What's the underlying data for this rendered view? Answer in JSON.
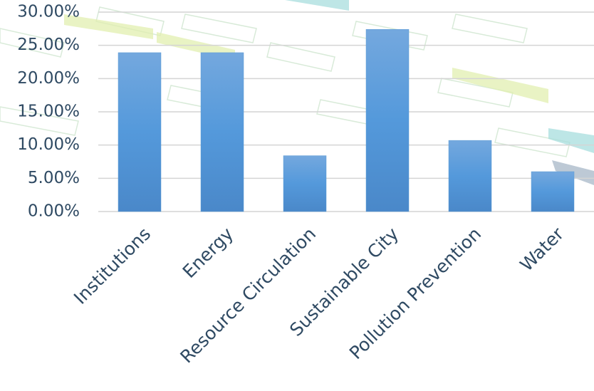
{
  "chart_data": {
    "type": "bar",
    "categories": [
      "Institutions",
      "Energy",
      "Resource Circulation",
      "Sustainable City",
      "Pollution Prevention",
      "Water"
    ],
    "values": [
      23.9,
      23.9,
      8.4,
      27.4,
      10.7,
      6.0
    ],
    "color": "#5b9bd5",
    "ylim": [
      0,
      30
    ],
    "yticks": [
      {
        "value": 0,
        "label": "0.00%"
      },
      {
        "value": 5,
        "label": "5.00%"
      },
      {
        "value": 10,
        "label": "10.00%"
      },
      {
        "value": 15,
        "label": "15.00%"
      },
      {
        "value": 20,
        "label": "20.00%"
      },
      {
        "value": 25,
        "label": "25.00%"
      },
      {
        "value": 30,
        "label": "30.00%"
      }
    ],
    "grid": true
  }
}
